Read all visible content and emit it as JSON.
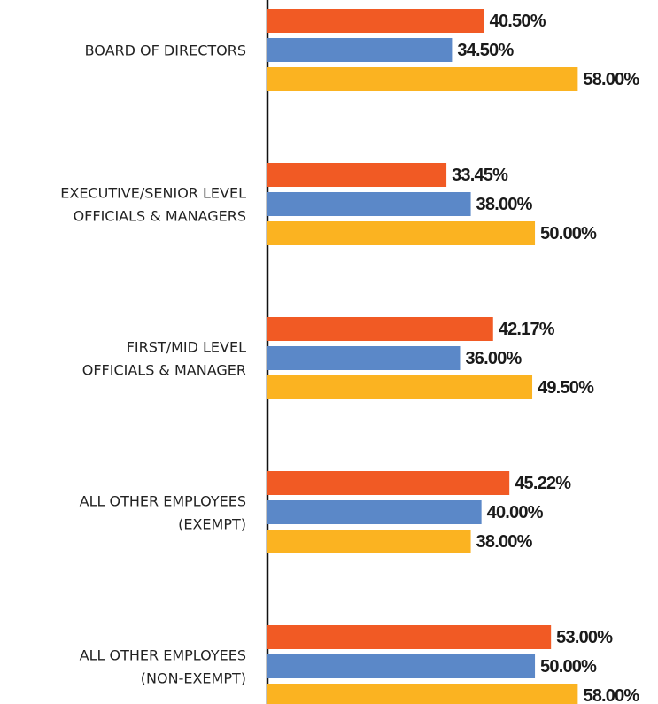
{
  "chart_data": {
    "type": "bar",
    "orientation": "horizontal",
    "categories": [
      "BOARD OF DIRECTORS",
      "EXECUTIVE/SENIOR LEVEL\nOFFICIALS & MANAGERS",
      "FIRST/MID LEVEL\nOFFICIALS & MANAGER",
      "ALL OTHER EMPLOYEES\n(EXEMPT)",
      "ALL OTHER EMPLOYEES\n(NON-EXEMPT)"
    ],
    "series": [
      {
        "color": "#f15a24",
        "values": [
          40.5,
          33.45,
          42.17,
          45.22,
          53.0
        ],
        "value_labels": [
          "40.50%",
          "33.45%",
          "42.17%",
          "45.22%",
          "53.00%"
        ]
      },
      {
        "color": "#5b88c8",
        "values": [
          34.5,
          38.0,
          36.0,
          40.0,
          50.0
        ],
        "value_labels": [
          "34.50%",
          "38.00%",
          "36.00%",
          "40.00%",
          "50.00%"
        ]
      },
      {
        "color": "#fbb321",
        "values": [
          58.0,
          50.0,
          49.5,
          38.0,
          58.0
        ],
        "value_labels": [
          "58.00%",
          "50.00%",
          "49.50%",
          "38.00%",
          "58.00%"
        ]
      }
    ],
    "xlim": [
      0,
      73
    ]
  }
}
